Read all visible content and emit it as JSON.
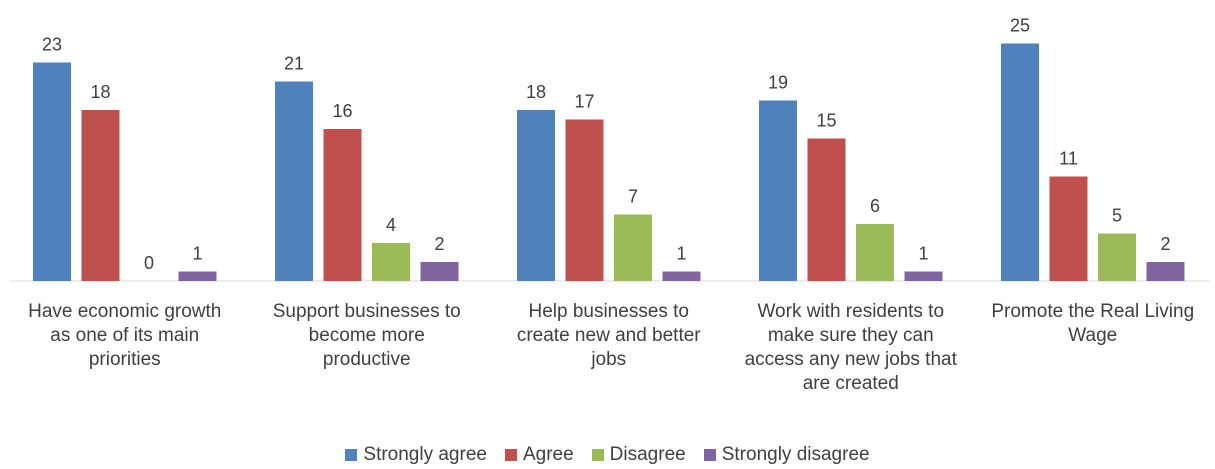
{
  "chart_data": {
    "type": "bar",
    "categories": [
      "Have economic growth as one of its main priorities",
      "Support businesses to become more productive",
      "Help businesses to create new and better jobs",
      "Work with residents to make sure they can access any new jobs that are created",
      "Promote the Real Living Wage"
    ],
    "category_lines": [
      [
        "Have economic growth",
        "as one of its main",
        "priorities"
      ],
      [
        "Support businesses to",
        "become more",
        "productive"
      ],
      [
        "Help businesses to",
        "create new and better",
        "jobs"
      ],
      [
        "Work with residents to",
        "make sure they can",
        "access any new jobs that",
        "are created"
      ],
      [
        "Promote the Real Living",
        "Wage"
      ]
    ],
    "series": [
      {
        "name": "Strongly agree",
        "color": "#4F81BD",
        "values": [
          23,
          21,
          18,
          19,
          25
        ]
      },
      {
        "name": "Agree",
        "color": "#C0504D",
        "values": [
          18,
          16,
          17,
          15,
          11
        ]
      },
      {
        "name": "Disagree",
        "color": "#9BBB59",
        "values": [
          0,
          4,
          7,
          6,
          5
        ]
      },
      {
        "name": "Strongly disagree",
        "color": "#8064A2",
        "values": [
          1,
          2,
          1,
          1,
          2
        ]
      }
    ],
    "ylim": [
      0,
      25
    ],
    "grid": false,
    "legend_position": "bottom"
  }
}
